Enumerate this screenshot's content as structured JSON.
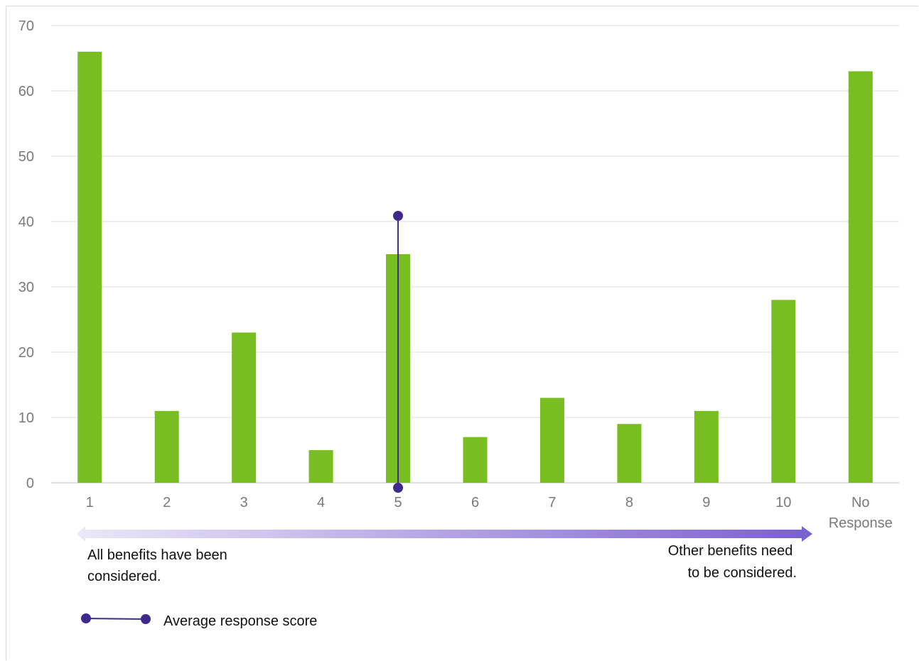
{
  "chart_data": {
    "type": "bar",
    "categories": [
      "1",
      "2",
      "3",
      "4",
      "5",
      "6",
      "7",
      "8",
      "9",
      "10",
      "No Response"
    ],
    "category_lines": [
      [
        "1"
      ],
      [
        "2"
      ],
      [
        "3"
      ],
      [
        "4"
      ],
      [
        "5"
      ],
      [
        "6"
      ],
      [
        "7"
      ],
      [
        "8"
      ],
      [
        "9"
      ],
      [
        "10"
      ],
      [
        "No",
        "Response"
      ]
    ],
    "values": [
      66,
      11,
      23,
      5,
      35,
      7,
      13,
      9,
      11,
      28,
      63
    ],
    "ylim": [
      0,
      70
    ],
    "yticks": [
      0,
      10,
      20,
      30,
      40,
      50,
      60,
      70
    ],
    "grid": true,
    "bar_color": "#78be20",
    "average_marker": {
      "name": "Average response score",
      "category": "5",
      "color": "#3f2a8c"
    },
    "scale_arrow": {
      "left_label": [
        "All benefits have been",
        "considered."
      ],
      "right_label": [
        "Other benefits need",
        "to be considered."
      ],
      "color_start": "#ece8f8",
      "color_end": "#7a5fd0"
    },
    "legend": {
      "label": "Average response score",
      "placement": "bottom-left"
    }
  }
}
